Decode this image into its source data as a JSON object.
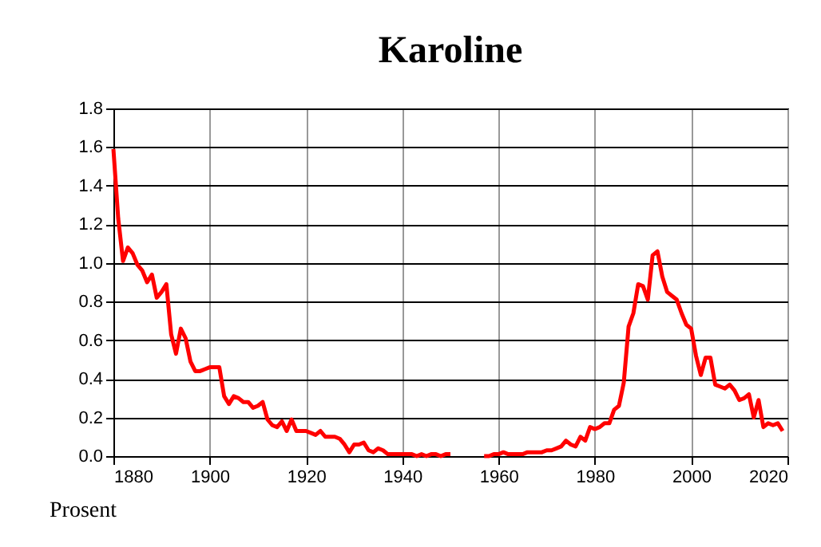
{
  "chart_data": {
    "type": "line",
    "title": "Karoline",
    "ylabel": "Prosent",
    "x": [
      1880,
      1881,
      1882,
      1883,
      1884,
      1885,
      1886,
      1887,
      1888,
      1889,
      1890,
      1891,
      1892,
      1893,
      1894,
      1895,
      1896,
      1897,
      1898,
      1899,
      1900,
      1901,
      1902,
      1903,
      1904,
      1905,
      1906,
      1907,
      1908,
      1909,
      1910,
      1911,
      1912,
      1913,
      1914,
      1915,
      1916,
      1917,
      1918,
      1919,
      1920,
      1921,
      1922,
      1923,
      1924,
      1925,
      1926,
      1927,
      1928,
      1929,
      1930,
      1931,
      1932,
      1933,
      1934,
      1935,
      1936,
      1937,
      1938,
      1939,
      1940,
      1941,
      1942,
      1943,
      1944,
      1945,
      1946,
      1947,
      1948,
      1949,
      1950,
      1951,
      1952,
      1953,
      1954,
      1955,
      1956,
      1957,
      1958,
      1959,
      1960,
      1961,
      1962,
      1963,
      1964,
      1965,
      1966,
      1967,
      1968,
      1969,
      1970,
      1971,
      1972,
      1973,
      1974,
      1975,
      1976,
      1977,
      1978,
      1979,
      1980,
      1981,
      1982,
      1983,
      1984,
      1985,
      1986,
      1987,
      1988,
      1989,
      1990,
      1991,
      1992,
      1993,
      1994,
      1995,
      1996,
      1997,
      1998,
      1999,
      2000,
      2001,
      2002,
      2003,
      2004,
      2005,
      2006,
      2007,
      2008,
      2009,
      2010,
      2011,
      2012,
      2013,
      2014,
      2015,
      2016,
      2017,
      2018,
      2019
    ],
    "series": [
      {
        "color": "#ff0000",
        "values": [
          1.59,
          1.23,
          1.01,
          1.08,
          1.05,
          0.99,
          0.96,
          0.9,
          0.94,
          0.82,
          0.85,
          0.89,
          0.63,
          0.53,
          0.66,
          0.61,
          0.49,
          0.44,
          0.44,
          0.45,
          0.46,
          0.46,
          0.46,
          0.31,
          0.27,
          0.31,
          0.3,
          0.28,
          0.28,
          0.25,
          0.26,
          0.28,
          0.19,
          0.16,
          0.15,
          0.18,
          0.13,
          0.19,
          0.13,
          0.13,
          0.13,
          0.12,
          0.11,
          0.13,
          0.1,
          0.1,
          0.1,
          0.09,
          0.06,
          0.02,
          0.06,
          0.06,
          0.07,
          0.03,
          0.02,
          0.04,
          0.03,
          0.01,
          0.01,
          0.01,
          0.01,
          0.01,
          0.01,
          0.0,
          0.01,
          0.0,
          0.01,
          0.01,
          0.0,
          0.01,
          0.01,
          null,
          null,
          null,
          null,
          null,
          null,
          0.0,
          0.0,
          0.01,
          0.01,
          0.02,
          0.01,
          0.01,
          0.01,
          0.01,
          0.02,
          0.02,
          0.02,
          0.02,
          0.03,
          0.03,
          0.04,
          0.05,
          0.08,
          0.06,
          0.05,
          0.1,
          0.08,
          0.15,
          0.14,
          0.15,
          0.17,
          0.17,
          0.24,
          0.26,
          0.38,
          0.67,
          0.74,
          0.89,
          0.88,
          0.81,
          1.04,
          1.06,
          0.93,
          0.85,
          0.83,
          0.81,
          0.74,
          0.68,
          0.66,
          0.52,
          0.42,
          0.51,
          0.51,
          0.37,
          0.36,
          0.35,
          0.37,
          0.34,
          0.29,
          0.3,
          0.32,
          0.2,
          0.29,
          0.15,
          0.17,
          0.16,
          0.17,
          0.13
        ]
      }
    ],
    "xlim": [
      1880,
      2020
    ],
    "xticks": [
      1880,
      1900,
      1920,
      1940,
      1960,
      1980,
      2000,
      2020
    ],
    "ylim": [
      0,
      1.8
    ],
    "yticks": [
      {
        "value": 0,
        "label": "0.0"
      },
      0.2,
      0.4,
      0.6,
      0.8,
      {
        "value": 1,
        "label": "1.0"
      },
      1.2,
      1.4,
      1.6,
      1.8
    ],
    "grid": true,
    "legend": false,
    "marker": "none",
    "line_style": "solid"
  }
}
